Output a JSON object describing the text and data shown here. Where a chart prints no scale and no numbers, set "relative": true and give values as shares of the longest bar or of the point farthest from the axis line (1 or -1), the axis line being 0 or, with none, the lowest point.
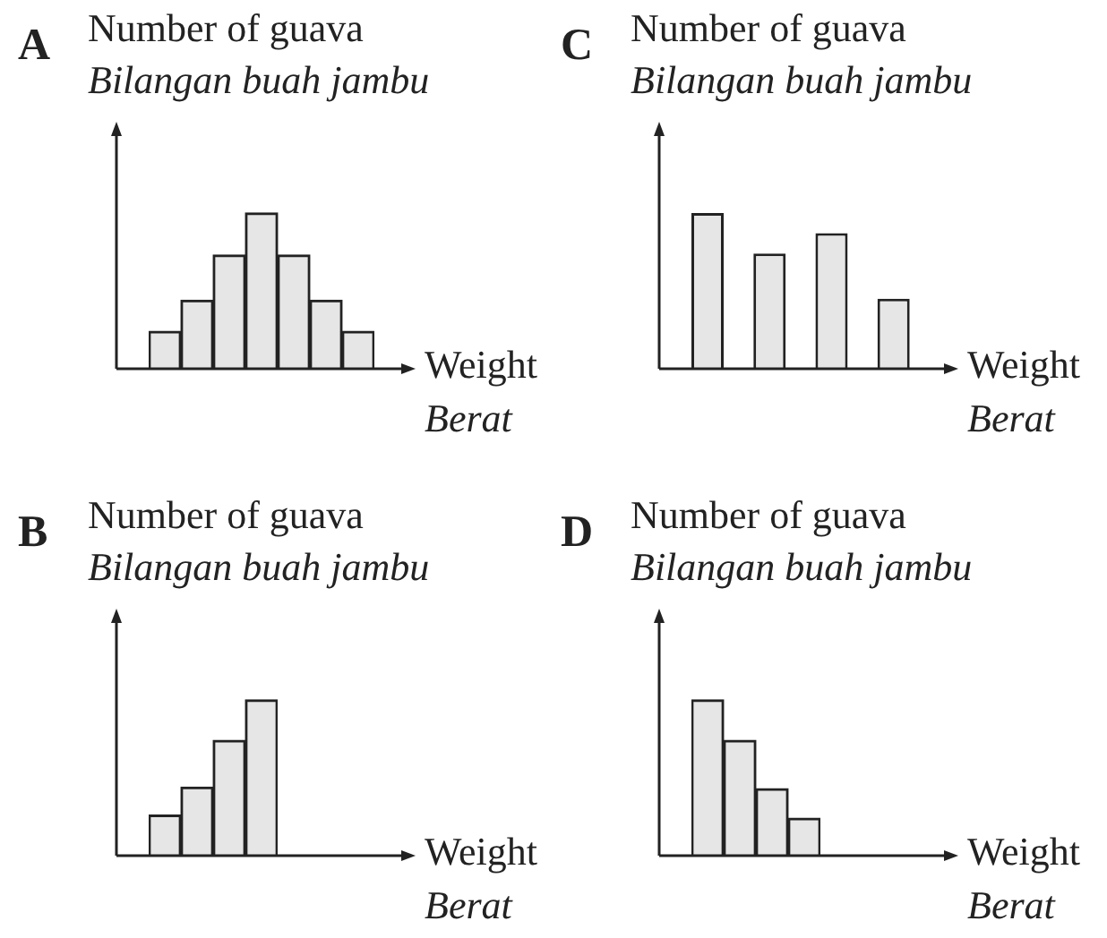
{
  "chart_data": [
    {
      "type": "bar",
      "title": "A",
      "ylabel": "Number of guava\nBilangan buah jambu",
      "xlabel": "Weight\nBerat",
      "categories": [
        null,
        null,
        null,
        null,
        null,
        null,
        null
      ],
      "values": [
        0.24,
        0.44,
        0.73,
        1,
        0.73,
        0.44,
        0.24
      ],
      "color": "#e6e6e6",
      "relative": true
    },
    {
      "type": "bar",
      "title": "C",
      "ylabel": "Number of guava\nBilangan buah jambu",
      "xlabel": "Weight\nBerat",
      "categories": [
        null,
        null,
        null,
        null
      ],
      "values": [
        1,
        0.74,
        0.87,
        0.45
      ],
      "color": "#e6e6e6",
      "relative": true
    },
    {
      "type": "bar",
      "title": "B",
      "ylabel": "Number of guava\nBilangan buah jambu",
      "xlabel": "Weight\nBerat",
      "categories": [
        null,
        null,
        null,
        null
      ],
      "values": [
        0.26,
        0.44,
        0.74,
        1
      ],
      "color": "#e6e6e6",
      "relative": true
    },
    {
      "type": "bar",
      "title": "D",
      "ylabel": "Number of guava\nBilangan buah jambu",
      "xlabel": "Weight\nBerat",
      "categories": [
        null,
        null,
        null,
        null
      ],
      "values": [
        1,
        0.74,
        0.43,
        0.24
      ],
      "color": "#e6e6e6",
      "relative": true
    }
  ]
}
